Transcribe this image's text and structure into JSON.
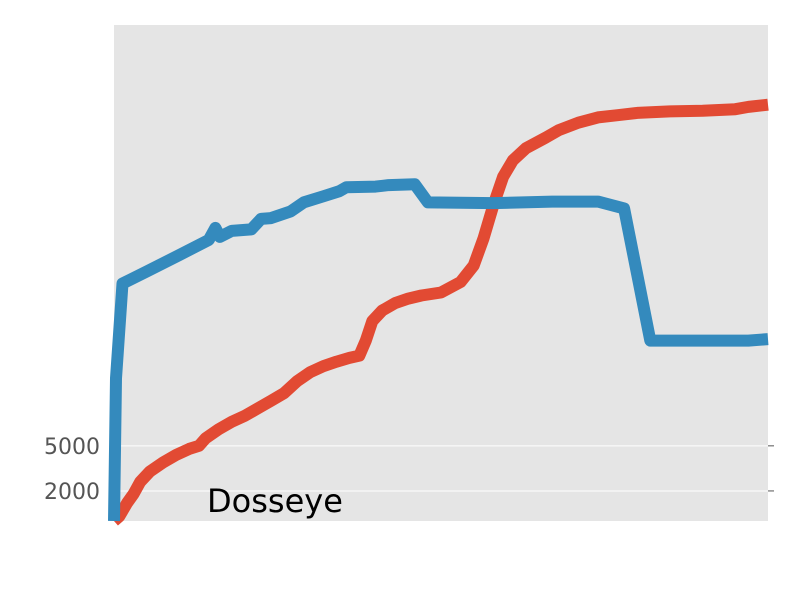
{
  "chart_data": {
    "type": "line",
    "title": "",
    "xlabel": "",
    "ylabel": "",
    "ylim": [
      0,
      33000
    ],
    "yticks": [
      {
        "value": 2000,
        "label": "2000"
      },
      {
        "value": 5000,
        "label": "5000"
      }
    ],
    "grid": true,
    "annotation": "Dosseye",
    "colors": {
      "background": "#e5e5e5",
      "grid": "#ffffff",
      "series_blue": "#348abd",
      "series_red": "#e24a33"
    },
    "series": [
      {
        "color": "#e24a33",
        "points": [
          [
            0,
            0
          ],
          [
            0.8,
            300
          ],
          [
            2,
            1200
          ],
          [
            3,
            1800
          ],
          [
            4,
            2600
          ],
          [
            5.5,
            3300
          ],
          [
            7.5,
            3900
          ],
          [
            9.5,
            4400
          ],
          [
            11.5,
            4800
          ],
          [
            13,
            5000
          ],
          [
            14,
            5500
          ],
          [
            16,
            6100
          ],
          [
            18,
            6600
          ],
          [
            20,
            7000
          ],
          [
            22,
            7500
          ],
          [
            24,
            8000
          ],
          [
            26,
            8500
          ],
          [
            28,
            9300
          ],
          [
            30,
            9900
          ],
          [
            32,
            10300
          ],
          [
            34,
            10600
          ],
          [
            36,
            10850
          ],
          [
            37.5,
            11000
          ],
          [
            38.5,
            12000
          ],
          [
            39.5,
            13300
          ],
          [
            41,
            14000
          ],
          [
            43,
            14500
          ],
          [
            45,
            14800
          ],
          [
            47,
            15000
          ],
          [
            50,
            15200
          ],
          [
            53,
            15900
          ],
          [
            55,
            17000
          ],
          [
            56.5,
            18800
          ],
          [
            58,
            21000
          ],
          [
            59.5,
            22900
          ],
          [
            61,
            24000
          ],
          [
            63,
            24800
          ],
          [
            66,
            25500
          ],
          [
            68,
            26000
          ],
          [
            71,
            26500
          ],
          [
            74,
            26850
          ],
          [
            77,
            27000
          ],
          [
            80,
            27150
          ],
          [
            85,
            27250
          ],
          [
            90,
            27300
          ],
          [
            95,
            27400
          ],
          [
            97,
            27550
          ],
          [
            100,
            27700
          ]
        ]
      },
      {
        "color": "#348abd",
        "points": [
          [
            0,
            0
          ],
          [
            0.3,
            9500
          ],
          [
            1.3,
            15800
          ],
          [
            5,
            16600
          ],
          [
            10,
            17700
          ],
          [
            14.5,
            18700
          ],
          [
            15.5,
            19500
          ],
          [
            16.2,
            18900
          ],
          [
            18,
            19300
          ],
          [
            21,
            19400
          ],
          [
            22.5,
            20100
          ],
          [
            24,
            20150
          ],
          [
            27,
            20600
          ],
          [
            29,
            21200
          ],
          [
            32,
            21600
          ],
          [
            34.5,
            21950
          ],
          [
            35.5,
            22200
          ],
          [
            40,
            22250
          ],
          [
            42,
            22350
          ],
          [
            46,
            22400
          ],
          [
            48,
            21200
          ],
          [
            58,
            21150
          ],
          [
            67,
            21250
          ],
          [
            74,
            21250
          ],
          [
            78,
            20800
          ],
          [
            82,
            12000
          ],
          [
            90,
            12000
          ],
          [
            97,
            12000
          ],
          [
            100,
            12100
          ]
        ]
      }
    ]
  }
}
